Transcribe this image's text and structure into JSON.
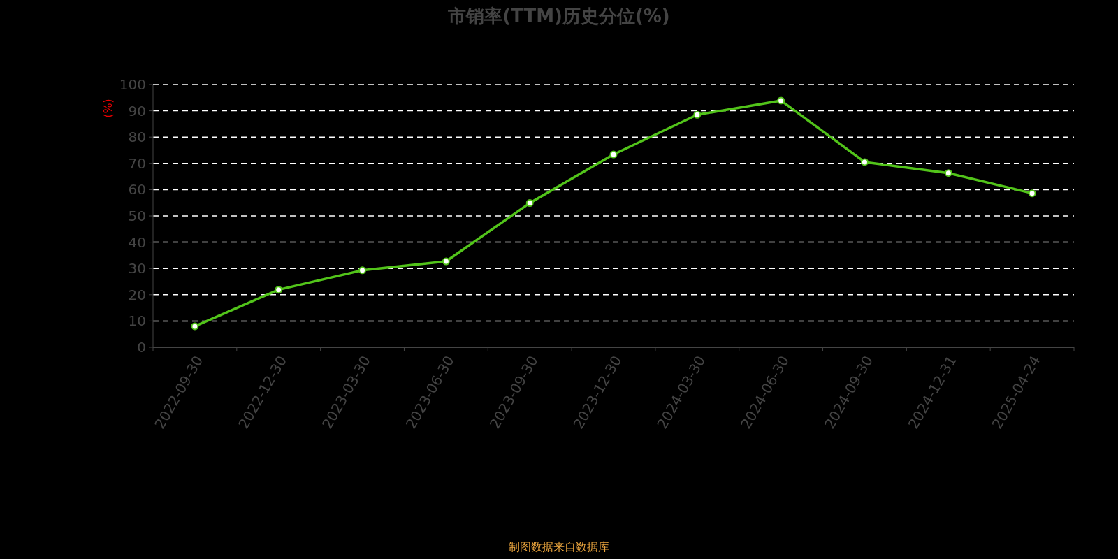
{
  "chart_data": {
    "type": "line",
    "title": "市销率(TTM)历史分位(%)",
    "ylabel": "(%)",
    "categories": [
      "2022-09-30",
      "2022-12-30",
      "2023-03-30",
      "2023-06-30",
      "2023-09-30",
      "2023-12-30",
      "2024-03-30",
      "2024-06-30",
      "2024-09-30",
      "2024-12-31",
      "2025-04-24"
    ],
    "series": [
      {
        "color": "#52c41a",
        "values": [
          8.0,
          21.9,
          29.3,
          32.7,
          54.9,
          73.4,
          88.5,
          93.9,
          70.5,
          66.3,
          58.6
        ]
      }
    ],
    "ylim": [
      0,
      100
    ],
    "yticks": [
      0,
      10,
      20,
      30,
      40,
      50,
      60,
      70,
      80,
      90,
      100
    ],
    "grid": "y",
    "marker": "circle",
    "line_style": "solid",
    "annotations": [
      "制图数据来自数据库"
    ]
  }
}
